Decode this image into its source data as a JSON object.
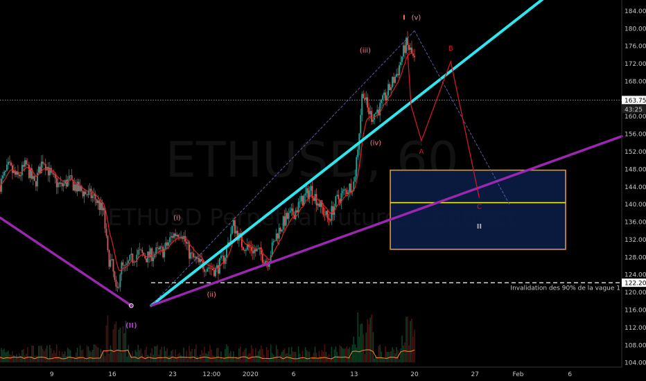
{
  "chart_data": {
    "type": "candlestick",
    "symbol_watermark": "ETHUSD, 60",
    "description_watermark": "ETHUSD Perpetual Futures Contract",
    "y_axis": {
      "ticks": [
        104,
        108,
        112,
        116,
        120,
        124,
        128,
        132,
        136,
        140,
        144,
        148,
        152,
        156,
        160,
        164,
        168,
        172,
        176,
        180,
        184
      ],
      "range": [
        103,
        186.5
      ]
    },
    "x_axis": {
      "ticks": [
        "9",
        "16",
        "23",
        "12:00",
        "2020",
        "6",
        "13",
        "20",
        "27",
        "Feb",
        "6"
      ],
      "tick_days": [
        9,
        16,
        23,
        27.5,
        32,
        37,
        44,
        51,
        58,
        63,
        69
      ],
      "range_days": [
        3,
        75
      ]
    },
    "price_labels": [
      {
        "value": 163.75,
        "text": "163.75",
        "color": "#ffffff",
        "text_color": "#000000"
      },
      {
        "value": 161.7,
        "text": "43:25",
        "color": "#1f1f1f",
        "text_color": "#cccccc"
      },
      {
        "value": 122.2,
        "text": "122.20",
        "color": "#ffffff",
        "text_color": "#000000"
      }
    ],
    "horizontal_lines": [
      {
        "price": 163.75,
        "style": "dotted",
        "color": "#bbbbbb"
      },
      {
        "price": 122.2,
        "style": "dashed",
        "color": "#ffffff",
        "x_start_day": 20.5
      }
    ],
    "annotation_text": "Invalidation des 90% de la vague 1",
    "annotation_price": 120.6,
    "trendlines": [
      {
        "name": "cyan",
        "color": "#2ee6ee",
        "points": [
          [
            20.5,
            117
          ],
          [
            68,
            190
          ]
        ]
      },
      {
        "name": "purple-rising",
        "color": "#9b27b0",
        "points": [
          [
            20.5,
            117
          ],
          [
            75,
            155.5
          ]
        ]
      },
      {
        "name": "purple-left",
        "color": "#9b27b0",
        "points": [
          [
            3,
            137
          ],
          [
            18.2,
            117
          ]
        ]
      },
      {
        "name": "dotted-up",
        "color": "#5b5ea6",
        "points": [
          [
            20.5,
            117
          ],
          [
            51,
            179.5
          ]
        ]
      },
      {
        "name": "dotted-down",
        "color": "#5b5ea6",
        "points": [
          [
            51,
            179.5
          ],
          [
            62,
            140
          ]
        ]
      }
    ],
    "projection": {
      "color": "#d0182a",
      "points": [
        [
          50.2,
          174.5
        ],
        [
          50.6,
          162.5
        ],
        [
          51.8,
          154.5
        ],
        [
          55.2,
          172.5
        ],
        [
          58.5,
          141.5
        ]
      ],
      "labels": [
        "A",
        "B",
        "C"
      ]
    },
    "target_box": {
      "price_top": 147.8,
      "price_bottom": 129.8,
      "day_left": 48.2,
      "day_right": 68.5,
      "mid_price": 140.4
    },
    "wave_labels": [
      {
        "text": "(II)",
        "day": 18.2,
        "price": 112,
        "color": "#b040d0"
      },
      {
        "text": "(i)",
        "day": 23.5,
        "price": 136.5,
        "color": "#ff7b8a"
      },
      {
        "text": "(ii)",
        "day": 27.5,
        "price": 119,
        "color": "#ff7b8a"
      },
      {
        "text": "(iii)",
        "day": 45.3,
        "price": 174.5,
        "color": "#ff7b8a"
      },
      {
        "text": "(iv)",
        "day": 46.5,
        "price": 153.5,
        "color": "#ff7b8a"
      },
      {
        "text": "I",
        "day": 49.8,
        "price": 182,
        "color": "#ff7b45"
      },
      {
        "text": "(v)",
        "day": 51.2,
        "price": 182,
        "color": "#ff7b8a"
      },
      {
        "text": "A",
        "day": 51.8,
        "price": 151.5,
        "color": "#d0182a"
      },
      {
        "text": "B",
        "day": 55.2,
        "price": 175,
        "color": "#d0182a"
      },
      {
        "text": "C",
        "day": 58.5,
        "price": 139,
        "color": "#d0182a"
      },
      {
        "text": "II",
        "day": 58.5,
        "price": 134.5,
        "color": "#b0b0b0"
      }
    ],
    "price_path": [
      [
        3,
        144.5
      ],
      [
        4,
        148.5
      ],
      [
        5,
        146
      ],
      [
        6,
        149
      ],
      [
        7,
        144.5
      ],
      [
        8,
        150.5
      ],
      [
        9,
        146
      ],
      [
        10,
        144
      ],
      [
        11,
        145.5
      ],
      [
        12,
        143.5
      ],
      [
        13,
        142.5
      ],
      [
        14,
        141.5
      ],
      [
        15,
        138
      ],
      [
        15.5,
        128
      ],
      [
        16,
        126
      ],
      [
        16.5,
        119
      ],
      [
        17,
        126
      ],
      [
        17.5,
        125
      ],
      [
        18,
        127
      ],
      [
        19,
        129
      ],
      [
        20,
        128
      ],
      [
        21,
        129
      ],
      [
        22,
        129.5
      ],
      [
        23,
        133
      ],
      [
        24,
        134
      ],
      [
        25,
        128.5
      ],
      [
        26,
        126.5
      ],
      [
        27,
        126
      ],
      [
        28,
        125
      ],
      [
        29,
        128
      ],
      [
        30,
        135.5
      ],
      [
        31,
        131
      ],
      [
        32,
        130
      ],
      [
        33,
        129
      ],
      [
        34,
        127
      ],
      [
        35,
        133
      ],
      [
        36,
        136.5
      ],
      [
        37,
        138
      ],
      [
        38,
        141
      ],
      [
        39,
        143.5
      ],
      [
        40,
        140
      ],
      [
        41,
        136.5
      ],
      [
        42,
        141
      ],
      [
        43,
        143
      ],
      [
        44,
        145
      ],
      [
        44.5,
        154.5
      ],
      [
        45,
        166.5
      ],
      [
        45.5,
        162
      ],
      [
        46,
        160
      ],
      [
        47,
        162
      ],
      [
        48,
        166
      ],
      [
        49,
        170
      ],
      [
        50,
        176.5
      ],
      [
        50.5,
        175
      ],
      [
        51,
        172.5
      ]
    ],
    "volume_x": [
      3,
      75
    ]
  }
}
